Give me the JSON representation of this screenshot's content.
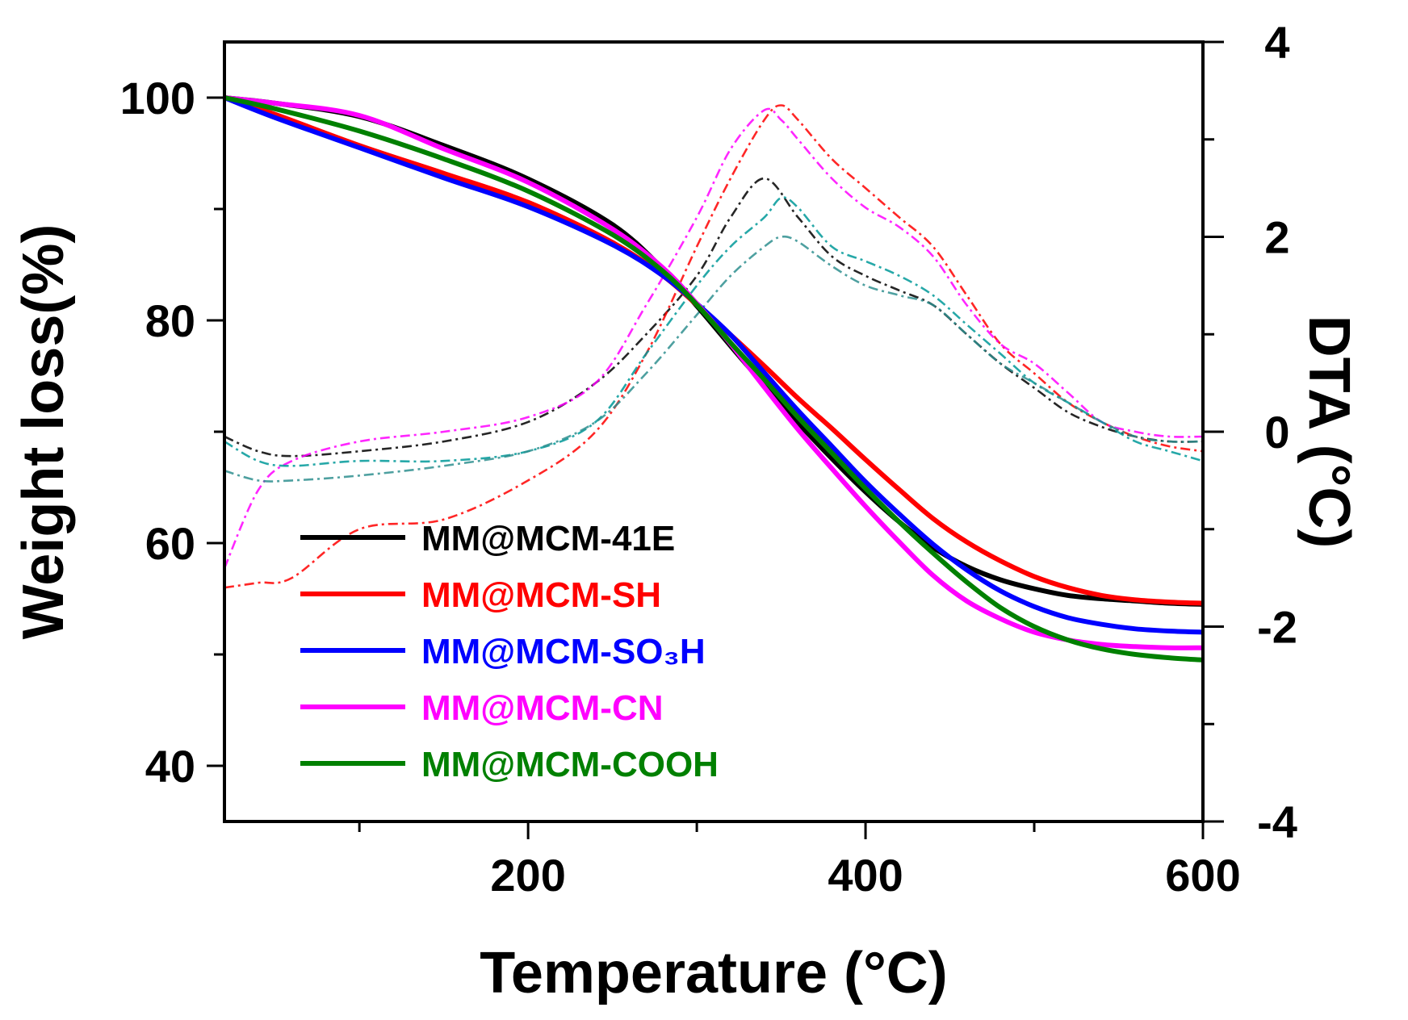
{
  "chart_data": {
    "type": "line",
    "title": "",
    "xlabel": "Temperature (°C)",
    "ylabel": "Weight loss(%)",
    "y2label": "DTA (°C)",
    "xlim": [
      20,
      600
    ],
    "ylim": [
      35,
      105
    ],
    "y2lim": [
      -4,
      4
    ],
    "x_ticks": [
      200,
      400,
      600
    ],
    "y_ticks": [
      40,
      60,
      80,
      100
    ],
    "y2_ticks": [
      -4,
      -2,
      0,
      2,
      4
    ],
    "grid": false,
    "legend_position": "bottom-left",
    "series": [
      {
        "name": "MM@MCM-41E",
        "color": "#000000",
        "tga": {
          "x": [
            20,
            50,
            100,
            150,
            200,
            250,
            280,
            300,
            320,
            340,
            360,
            380,
            400,
            420,
            440,
            460,
            480,
            500,
            520,
            540,
            560,
            580,
            600
          ],
          "y": [
            100,
            99.5,
            98.3,
            95.7,
            92.7,
            88.6,
            84.6,
            81.3,
            77.7,
            74.2,
            70.8,
            67.6,
            64.6,
            61.9,
            59.6,
            57.9,
            56.7,
            55.9,
            55.3,
            55.0,
            54.8,
            54.6,
            54.5
          ]
        },
        "dta": {
          "x": [
            20,
            40,
            60,
            100,
            150,
            200,
            240,
            270,
            300,
            320,
            340,
            360,
            380,
            400,
            420,
            440,
            460,
            480,
            500,
            520,
            540,
            560,
            580,
            600
          ],
          "y": [
            -0.05,
            -0.2,
            -0.25,
            -0.2,
            -0.1,
            0.1,
            0.5,
            1.0,
            1.6,
            2.2,
            2.6,
            2.2,
            1.8,
            1.6,
            1.45,
            1.3,
            1.0,
            0.7,
            0.45,
            0.2,
            0.05,
            -0.05,
            -0.1,
            -0.1
          ]
        }
      },
      {
        "name": "MM@MCM-SH",
        "color": "#ff0000",
        "tga": {
          "x": [
            20,
            50,
            100,
            150,
            200,
            250,
            280,
            300,
            320,
            340,
            360,
            380,
            400,
            420,
            440,
            460,
            480,
            500,
            520,
            540,
            560,
            580,
            600
          ],
          "y": [
            100,
            98.5,
            95.7,
            93.2,
            90.6,
            87.0,
            84.0,
            81.4,
            78.7,
            75.9,
            73.0,
            70.3,
            67.5,
            64.8,
            62.2,
            60.1,
            58.4,
            57.0,
            56.0,
            55.3,
            54.9,
            54.7,
            54.6
          ]
        },
        "dta": {
          "x": [
            20,
            40,
            60,
            100,
            150,
            200,
            240,
            270,
            300,
            320,
            340,
            350,
            360,
            380,
            400,
            420,
            440,
            460,
            480,
            500,
            520,
            540,
            560,
            580,
            600
          ],
          "y": [
            -1.6,
            -1.55,
            -1.5,
            -1.0,
            -0.9,
            -0.5,
            0.0,
            0.8,
            1.9,
            2.6,
            3.2,
            3.35,
            3.2,
            2.8,
            2.5,
            2.2,
            1.9,
            1.4,
            0.9,
            0.6,
            0.3,
            0.1,
            -0.05,
            -0.15,
            -0.2
          ]
        }
      },
      {
        "name": "MM@MCM-SO₃H",
        "color": "#0000ff",
        "tga": {
          "x": [
            20,
            50,
            100,
            150,
            200,
            250,
            280,
            300,
            320,
            340,
            360,
            380,
            400,
            420,
            440,
            460,
            480,
            500,
            520,
            540,
            560,
            580,
            600
          ],
          "y": [
            100,
            98.2,
            95.5,
            92.8,
            90.2,
            86.8,
            84.0,
            81.5,
            78.7,
            75.3,
            71.9,
            68.7,
            65.5,
            62.6,
            59.9,
            57.6,
            55.7,
            54.3,
            53.3,
            52.7,
            52.3,
            52.1,
            52.0
          ]
        }
      },
      {
        "name": "MM@MCM-CN",
        "color": "#ff00ff",
        "tga": {
          "x": [
            20,
            50,
            100,
            150,
            200,
            250,
            280,
            300,
            320,
            340,
            360,
            380,
            400,
            420,
            440,
            460,
            480,
            500,
            520,
            540,
            560,
            580,
            600
          ],
          "y": [
            100,
            99.5,
            98.4,
            95.4,
            92.4,
            88.2,
            84.7,
            81.5,
            77.9,
            74.0,
            70.2,
            66.7,
            63.3,
            60.1,
            57.1,
            54.8,
            53.2,
            52.0,
            51.3,
            50.9,
            50.7,
            50.6,
            50.6
          ]
        },
        "dta": {
          "x": [
            20,
            40,
            60,
            100,
            150,
            200,
            240,
            270,
            300,
            320,
            340,
            350,
            360,
            380,
            400,
            420,
            440,
            460,
            480,
            500,
            520,
            540,
            560,
            580,
            600
          ],
          "y": [
            -1.4,
            -0.6,
            -0.3,
            -0.1,
            0.0,
            0.15,
            0.5,
            1.3,
            2.2,
            2.9,
            3.3,
            3.2,
            3.0,
            2.6,
            2.3,
            2.1,
            1.8,
            1.3,
            0.9,
            0.7,
            0.4,
            0.1,
            0.0,
            -0.05,
            -0.05
          ]
        }
      },
      {
        "name": "MM@MCM-COOH",
        "color": "#008000",
        "tga": {
          "x": [
            20,
            50,
            100,
            150,
            200,
            250,
            280,
            300,
            320,
            340,
            360,
            380,
            400,
            420,
            440,
            460,
            480,
            500,
            520,
            540,
            560,
            580,
            600
          ],
          "y": [
            100,
            99.0,
            97.0,
            94.5,
            91.6,
            87.7,
            84.4,
            81.4,
            78.0,
            74.7,
            71.3,
            68.1,
            64.9,
            61.9,
            59.1,
            56.5,
            54.2,
            52.5,
            51.3,
            50.5,
            50.0,
            49.7,
            49.5
          ]
        }
      },
      {
        "name": "",
        "color": "#009999",
        "dta": {
          "x": [
            20,
            40,
            60,
            100,
            150,
            200,
            240,
            270,
            300,
            320,
            340,
            350,
            360,
            380,
            400,
            420,
            440,
            460,
            480,
            500,
            520,
            540,
            560,
            580,
            600
          ],
          "y": [
            -0.1,
            -0.3,
            -0.35,
            -0.3,
            -0.3,
            -0.2,
            0.1,
            0.8,
            1.5,
            1.9,
            2.2,
            2.4,
            2.3,
            1.9,
            1.75,
            1.6,
            1.4,
            1.1,
            0.8,
            0.5,
            0.3,
            0.1,
            -0.1,
            -0.2,
            -0.3
          ]
        }
      },
      {
        "name": "",
        "color": "#2f8f8f",
        "dta": {
          "x": [
            20,
            40,
            60,
            100,
            150,
            200,
            240,
            270,
            300,
            320,
            340,
            350,
            360,
            380,
            400,
            420,
            440,
            460,
            480,
            500,
            520,
            540,
            560,
            580,
            600
          ],
          "y": [
            -0.4,
            -0.5,
            -0.5,
            -0.45,
            -0.35,
            -0.2,
            0.1,
            0.6,
            1.2,
            1.6,
            1.9,
            2.0,
            1.95,
            1.7,
            1.5,
            1.4,
            1.3,
            1.0,
            0.7,
            0.5,
            0.3,
            0.1,
            -0.05,
            -0.1,
            -0.1
          ]
        }
      }
    ]
  }
}
